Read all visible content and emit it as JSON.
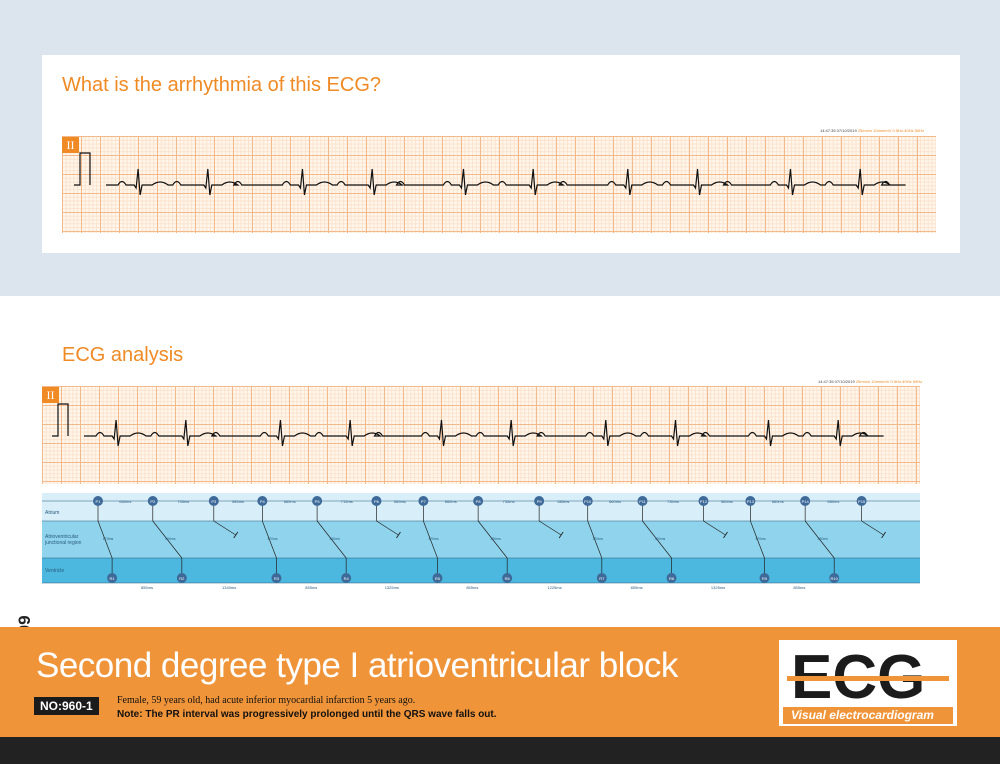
{
  "question": "What is the arrhythmia of this ECG?",
  "analysis_title": "ECG analysis",
  "lead_label": "II",
  "strip_meta": {
    "time": "14:47:35 07/10/2019",
    "filter": "25mm/s 10mm/mV 0.5Hz-40Hz 50Hz"
  },
  "ladder": {
    "rows": [
      "Atrium",
      "Atrioventricular junctional region",
      "Ventricle"
    ],
    "p_labels": [
      "P1",
      "P2",
      "P3",
      "P4",
      "P5",
      "P6",
      "P7",
      "P8",
      "P9",
      "P10",
      "P11",
      "P12",
      "P13",
      "P14",
      "P15"
    ],
    "pp_intervals": [
      "660ms",
      "735ms",
      "585ms",
      "660ms",
      "715ms",
      "565ms",
      "660ms",
      "735ms",
      "585ms",
      "660ms",
      "735ms",
      "565ms",
      "660ms",
      "680ms"
    ],
    "pr_intervals": [
      "170ms",
      "350ms",
      "170ms",
      "350ms",
      "170ms",
      "350ms",
      "170ms",
      "350ms",
      "170ms",
      "350ms"
    ],
    "r_labels": [
      "R1",
      "R2",
      "R3",
      "R4",
      "R5",
      "R6",
      "R7",
      "R8",
      "R9",
      "R10"
    ],
    "rr_intervals": [
      "855ms",
      "1340ms",
      "855ms",
      "1325ms",
      "855ms",
      "1225ms",
      "855ms",
      "1325ms",
      "855ms"
    ]
  },
  "footer": {
    "title": "Second degree type I atrioventricular block",
    "number": "NO:960-1",
    "patient": "Female, 59 years old, had acute inferior myocardial infarction 5 years ago.",
    "note": "Note: The PR interval was progressively prolonged until the QRS wave falls out."
  },
  "logo": {
    "text": "ECG",
    "subtitle": "Visual electrocardiogram"
  },
  "stock_id": "#541697409",
  "colors": {
    "accent": "#f08a24",
    "band": "#dce4ee",
    "atrium": "#d8eef8",
    "junction": "#8fd4ec",
    "ventricle": "#4cb8df"
  }
}
